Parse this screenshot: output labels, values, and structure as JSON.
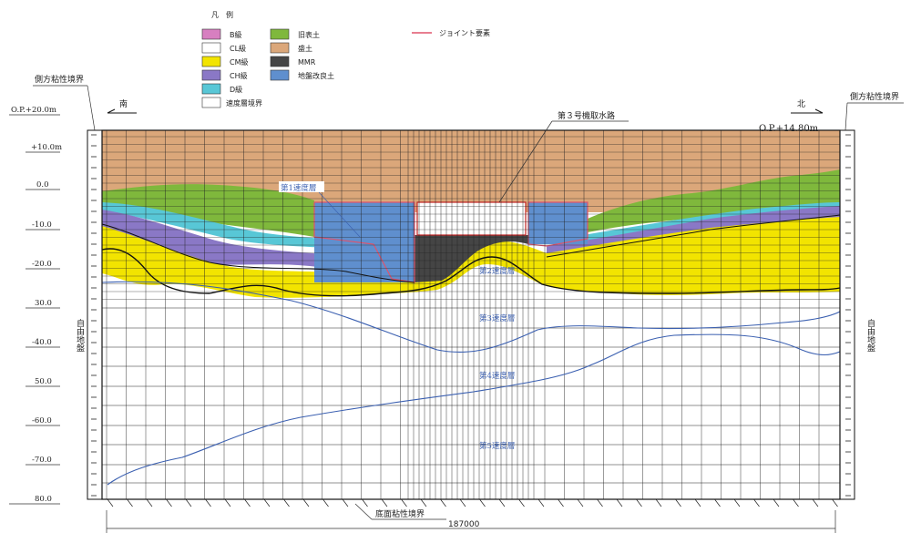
{
  "legend": {
    "title": "凡　例",
    "items": [
      {
        "label": "B級",
        "color": "#d77fc0"
      },
      {
        "label": "CL級",
        "color": "#ffffff"
      },
      {
        "label": "CM級",
        "color": "#f2e400"
      },
      {
        "label": "CH級",
        "color": "#8a78c6"
      },
      {
        "label": "D級",
        "color": "#58c7d6"
      },
      {
        "label": "速度層境界",
        "color": "#ffffff"
      }
    ],
    "items2": [
      {
        "label": "旧表土",
        "color": "#7fb83c"
      },
      {
        "label": "盛土",
        "color": "#dba77a"
      },
      {
        "label": "MMR",
        "color": "#454545"
      },
      {
        "label": "地盤改良土",
        "color": "#5f8fce"
      }
    ],
    "joint": {
      "label": "ジョイント要素",
      "color": "#e0536b"
    }
  },
  "labels": {
    "left_boundary": "側方粘性境界",
    "right_boundary": "側方粘性境界",
    "south": "南",
    "north": "北",
    "channel": "第３号機取水路",
    "top_elev": "O.P.+14.80m",
    "bottom_boundary": "底面粘性境界",
    "width": "187000",
    "free_ground_left": "自由地盤",
    "free_ground_right": "自由地盤"
  },
  "layers": [
    "第1速度層",
    "第2速度層",
    "第3速度層",
    "第4速度層",
    "第5速度層"
  ],
  "y_axis": [
    "O.P.+20.0m",
    "+10.0m",
    "0.0",
    "-10.0",
    "-20.0",
    "30.0",
    "-40.0",
    "50.0",
    "-60.0",
    "-70.0",
    "80.0"
  ]
}
